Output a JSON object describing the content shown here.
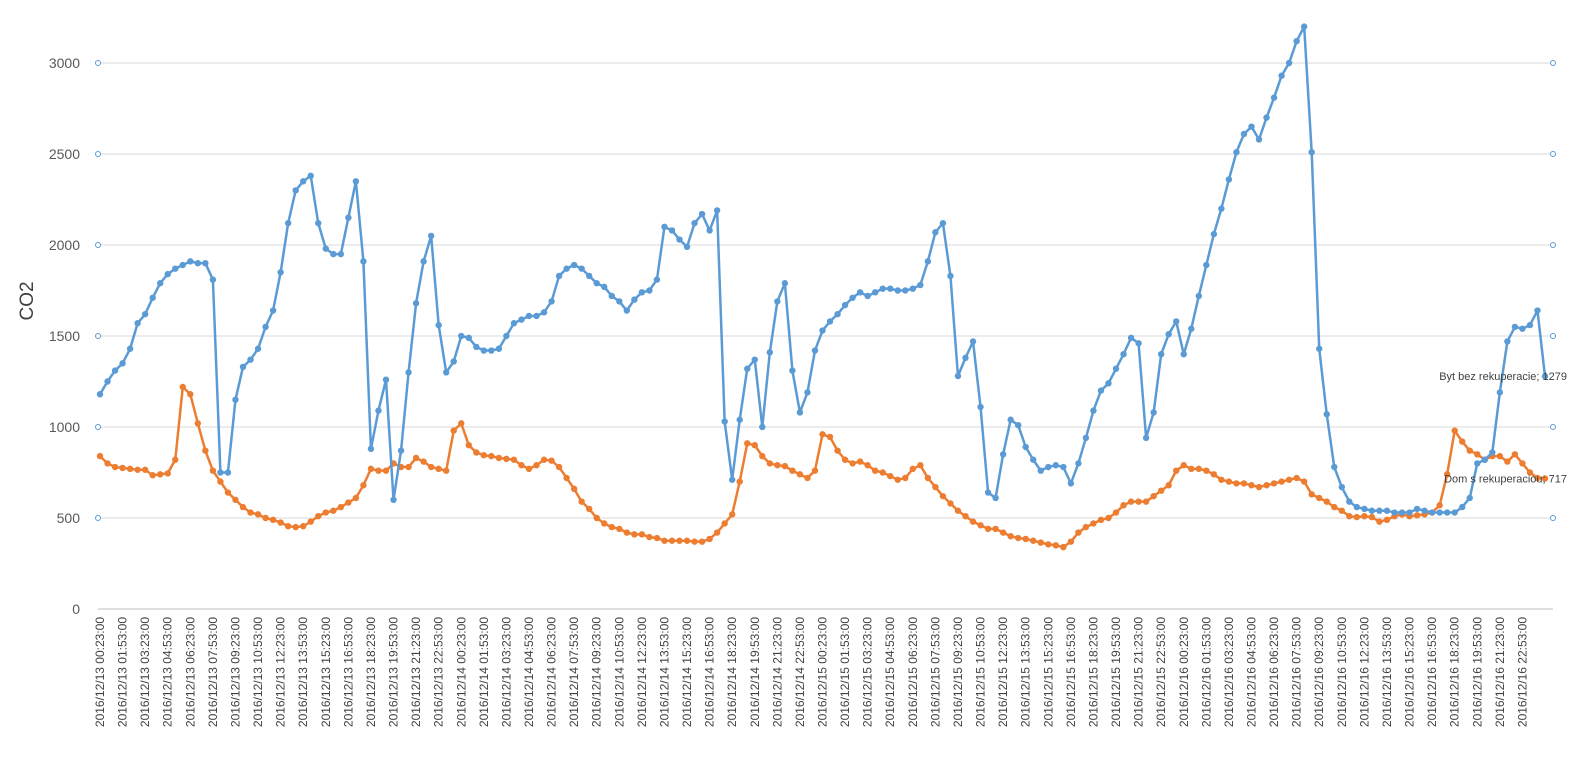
{
  "chart_data": {
    "type": "line",
    "ylabel": "CO2",
    "xlabel": "",
    "ylim": [
      0,
      3000
    ],
    "yticks": [
      0,
      500,
      1000,
      1500,
      2000,
      2500,
      3000
    ],
    "grid": true,
    "marker": "circle",
    "x_tick_labels": [
      "2016/12/13 00:23:00",
      "2016/12/13 01:53:00",
      "2016/12/13 03:23:00",
      "2016/12/13 04:53:00",
      "2016/12/13 06:23:00",
      "2016/12/13 07:53:00",
      "2016/12/13 09:23:00",
      "2016/12/13 10:53:00",
      "2016/12/13 12:23:00",
      "2016/12/13 13:53:00",
      "2016/12/13 15:23:00",
      "2016/12/13 16:53:00",
      "2016/12/13 18:23:00",
      "2016/12/13 19:53:00",
      "2016/12/13 21:23:00",
      "2016/12/13 22:53:00",
      "2016/12/14 00:23:00",
      "2016/12/14 01:53:00",
      "2016/12/14 03:23:00",
      "2016/12/14 04:53:00",
      "2016/12/14 06:23:00",
      "2016/12/14 07:53:00",
      "2016/12/14 09:23:00",
      "2016/12/14 10:53:00",
      "2016/12/14 12:23:00",
      "2016/12/14 13:53:00",
      "2016/12/14 15:23:00",
      "2016/12/14 16:53:00",
      "2016/12/14 18:23:00",
      "2016/12/14 19:53:00",
      "2016/12/14 21:23:00",
      "2016/12/14 22:53:00",
      "2016/12/15 00:23:00",
      "2016/12/15 01:53:00",
      "2016/12/15 03:23:00",
      "2016/12/15 04:53:00",
      "2016/12/15 06:23:00",
      "2016/12/15 07:53:00",
      "2016/12/15 09:23:00",
      "2016/12/15 10:53:00",
      "2016/12/15 12:23:00",
      "2016/12/15 13:53:00",
      "2016/12/15 15:23:00",
      "2016/12/15 16:53:00",
      "2016/12/15 18:23:00",
      "2016/12/15 19:53:00",
      "2016/12/15 21:23:00",
      "2016/12/15 22:53:00",
      "2016/12/16 00:23:00",
      "2016/12/16 01:53:00",
      "2016/12/16 03:23:00",
      "2016/12/16 04:53:00",
      "2016/12/16 06:23:00",
      "2016/12/16 07:53:00",
      "2016/12/16 09:23:00",
      "2016/12/16 10:53:00",
      "2016/12/16 12:23:00",
      "2016/12/16 13:53:00",
      "2016/12/16 15:23:00",
      "2016/12/16 16:53:00",
      "2016/12/16 18:23:00",
      "2016/12/16 19:53:00",
      "2016/12/16 21:23:00",
      "2016/12/16 22:53:00"
    ],
    "series": [
      {
        "name": "Byt bez rekuperacie",
        "color": "#5b9bd5",
        "data_label": "Byt bez rekuperacie; 1279",
        "values": [
          1180,
          1250,
          1310,
          1350,
          1430,
          1570,
          1620,
          1710,
          1790,
          1840,
          1870,
          1890,
          1910,
          1900,
          1900,
          1810,
          750,
          750,
          1150,
          1330,
          1370,
          1430,
          1550,
          1640,
          1850,
          2120,
          2300,
          2350,
          2380,
          2120,
          1980,
          1950,
          1950,
          2150,
          2350,
          1910,
          880,
          1090,
          1260,
          600,
          870,
          1300,
          1680,
          1910,
          2050,
          1560,
          1300,
          1360,
          1500,
          1490,
          1440,
          1420,
          1420,
          1430,
          1500,
          1570,
          1590,
          1610,
          1610,
          1630,
          1690,
          1830,
          1870,
          1890,
          1870,
          1830,
          1790,
          1770,
          1720,
          1690,
          1640,
          1700,
          1740,
          1750,
          1810,
          2100,
          2080,
          2030,
          1990,
          2120,
          2170,
          2080,
          2190,
          1030,
          710,
          1040,
          1320,
          1370,
          1000,
          1410,
          1690,
          1790,
          1310,
          1080,
          1190,
          1420,
          1530,
          1580,
          1620,
          1670,
          1710,
          1740,
          1720,
          1740,
          1760,
          1760,
          1750,
          1750,
          1760,
          1780,
          1910,
          2070,
          2120,
          1830,
          1280,
          1380,
          1470,
          1110,
          640,
          610,
          850,
          1040,
          1010,
          890,
          820,
          760,
          780,
          790,
          780,
          690,
          800,
          940,
          1090,
          1200,
          1240,
          1320,
          1400,
          1490,
          1460,
          940,
          1080,
          1400,
          1510,
          1580,
          1400,
          1540,
          1720,
          1890,
          2060,
          2200,
          2360,
          2510,
          2610,
          2650,
          2580,
          2700,
          2810,
          2930,
          3000,
          3120,
          3200,
          2510,
          1430,
          1070,
          780,
          670,
          590,
          560,
          550,
          540,
          540,
          540,
          530,
          530,
          530,
          550,
          540,
          530,
          530,
          530,
          530,
          560,
          610,
          800,
          820,
          860,
          1190,
          1470,
          1550,
          1540,
          1560,
          1640,
          1279
        ]
      },
      {
        "name": "Dom s rekuperaciou",
        "color": "#ed7d31",
        "data_label": "Dom s rekuperaciou; 717",
        "values": [
          840,
          800,
          780,
          775,
          770,
          765,
          765,
          735,
          740,
          745,
          820,
          1220,
          1180,
          1020,
          870,
          760,
          700,
          640,
          600,
          560,
          530,
          520,
          500,
          490,
          475,
          455,
          450,
          455,
          480,
          510,
          530,
          540,
          560,
          585,
          610,
          680,
          770,
          760,
          760,
          800,
          780,
          780,
          830,
          810,
          780,
          770,
          760,
          980,
          1020,
          900,
          860,
          845,
          840,
          830,
          825,
          820,
          790,
          770,
          790,
          820,
          815,
          780,
          720,
          660,
          590,
          550,
          500,
          470,
          450,
          440,
          420,
          410,
          410,
          395,
          390,
          375,
          375,
          375,
          375,
          370,
          370,
          385,
          420,
          470,
          520,
          700,
          910,
          900,
          840,
          800,
          790,
          785,
          760,
          740,
          720,
          760,
          960,
          945,
          870,
          820,
          800,
          810,
          790,
          760,
          750,
          730,
          710,
          720,
          770,
          790,
          720,
          670,
          620,
          580,
          540,
          510,
          480,
          460,
          440,
          440,
          420,
          400,
          390,
          385,
          375,
          365,
          355,
          350,
          340,
          370,
          420,
          450,
          470,
          490,
          500,
          530,
          570,
          590,
          590,
          590,
          620,
          650,
          680,
          760,
          790,
          770,
          770,
          760,
          740,
          710,
          700,
          690,
          690,
          680,
          670,
          680,
          690,
          700,
          710,
          720,
          700,
          630,
          610,
          590,
          560,
          540,
          510,
          505,
          510,
          505,
          480,
          490,
          510,
          520,
          510,
          515,
          520,
          530,
          570,
          740,
          980,
          920,
          870,
          850,
          820,
          840,
          840,
          810,
          850,
          800,
          750,
          720,
          717
        ]
      }
    ]
  }
}
